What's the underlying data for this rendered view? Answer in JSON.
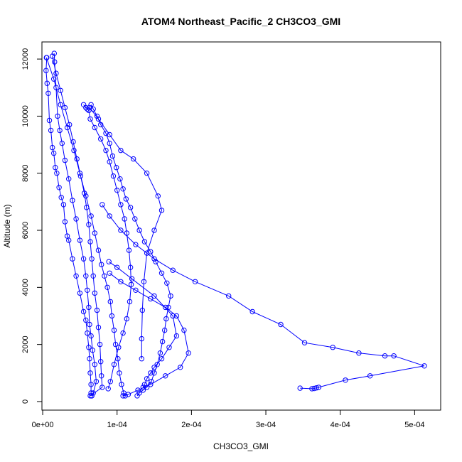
{
  "chart_data": {
    "type": "line",
    "title": "ATOM4 Northeast_Pacific_2 CH3CO3_GMI",
    "xlabel": "CH3CO3_GMI",
    "ylabel": "Altitude (m)",
    "xlim": [
      -1e-06,
      0.000535
    ],
    "ylim": [
      -300,
      12600
    ],
    "x_ticks": [
      0,
      0.0001,
      0.0002,
      0.0003,
      0.0004,
      0.0005
    ],
    "x_tick_labels": [
      "0e+00",
      "1e-04",
      "2e-04",
      "3e-04",
      "4e-04",
      "5e-04"
    ],
    "y_ticks": [
      0,
      2000,
      4000,
      6000,
      8000,
      10000,
      12000
    ],
    "y_tick_labels": [
      "0",
      "2000",
      "4000",
      "6000",
      "8000",
      "10000",
      "12000"
    ],
    "marker": "open-circle",
    "series_color": "#0000ff",
    "grid": false,
    "legend": false,
    "series": [
      {
        "x": [
          5.5e-06,
          4.5e-06,
          6e-06,
          7.5e-06,
          9e-06,
          1.1e-05,
          1.3e-05,
          1.5e-05,
          1.7e-05,
          1.9e-05,
          2.2e-05,
          2.5e-05,
          2.8e-05,
          3e-05,
          3.3e-05,
          3.5e-05,
          4e-05,
          4.5e-05,
          5e-05,
          5.5e-05,
          5.8e-05,
          6e-05,
          6.2e-05,
          6.3e-05,
          6.4e-05,
          6.5e-05,
          6.5e-05,
          6.6e-05
        ],
        "y": [
          12050,
          11600,
          11150,
          10800,
          9850,
          9500,
          8900,
          8700,
          8200,
          8000,
          7500,
          7150,
          6900,
          6300,
          5800,
          5650,
          5000,
          4400,
          3800,
          3150,
          2850,
          2400,
          1900,
          1500,
          1000,
          600,
          300,
          200
        ]
      },
      {
        "x": [
          5e-06,
          1.5e-05,
          2.4e-05,
          3.3e-05,
          4.2e-05,
          5e-05,
          5.8e-05,
          6.5e-05,
          7e-05,
          7.5e-05,
          7.9e-05,
          8.3e-05,
          8.7e-05,
          9.1e-05,
          9.3e-05,
          9.6e-05,
          9.8e-05,
          0.000101,
          0.000103,
          0.000106,
          0.000109,
          0.000111
        ],
        "y": [
          12050,
          11300,
          10400,
          9600,
          8800,
          8000,
          7200,
          6500,
          5900,
          5300,
          4800,
          4400,
          4000,
          3500,
          3000,
          2500,
          2000,
          1500,
          1000,
          600,
          300,
          200
        ]
      },
      {
        "x": [
          1.55e-05,
          1.6e-05,
          1.8e-05,
          2e-05,
          2.3e-05,
          2.6e-05,
          3e-05,
          3.5e-05,
          4e-05,
          4.5e-05,
          5e-05,
          5.5e-05,
          5.8e-05,
          6e-05,
          6.2e-05,
          6.3e-05,
          6.5e-05,
          6.7e-05,
          7e-05,
          7.2e-05,
          6.8e-05,
          6.6e-05
        ],
        "y": [
          12200,
          11900,
          11000,
          10000,
          9500,
          9050,
          8450,
          7800,
          7050,
          6400,
          5650,
          5000,
          4400,
          3900,
          3300,
          2700,
          2300,
          1800,
          1300,
          700,
          300,
          200
        ]
      },
      {
        "x": [
          1.3e-05,
          1.8e-05,
          2.4e-05,
          3e-05,
          3.6e-05,
          4.1e-05,
          4.6e-05,
          5.1e-05,
          5.6e-05,
          5.9e-05,
          6.2e-05,
          6.4e-05,
          6.6e-05,
          6.8e-05,
          7e-05,
          7.3e-05,
          7.5e-05,
          7.7e-05,
          7.8e-05,
          7.9e-05,
          8e-05,
          6.4e-05
        ],
        "y": [
          12100,
          11500,
          10900,
          10300,
          9700,
          9100,
          8500,
          7900,
          7300,
          6800,
          6200,
          5600,
          5000,
          4400,
          3800,
          3200,
          2600,
          2000,
          1400,
          900,
          500,
          200
        ]
      },
      {
        "x": [
          6.5e-05,
          6.8e-05,
          7.3e-05,
          7.8e-05,
          8.5e-05,
          9e-05,
          9.4e-05,
          9.9e-05,
          0.000104,
          0.000108,
          0.000112,
          0.000118,
          0.000124,
          0.00013,
          0.000137,
          0.000145,
          0.000152,
          0.00016,
          0.000167,
          0.000172,
          0.000169,
          0.000166,
          0.000164,
          0.000161,
          0.000158,
          0.000154,
          0.00015,
          0.000146,
          0.00014,
          0.000135,
          0.00013,
          0.000127
        ],
        "y": [
          10400,
          10250,
          10000,
          9700,
          9400,
          9050,
          8600,
          8200,
          7800,
          7450,
          7100,
          6800,
          6400,
          6000,
          5600,
          5250,
          4900,
          4500,
          4150,
          3700,
          3300,
          2900,
          2500,
          2100,
          1700,
          1300,
          1000,
          700,
          500,
          400,
          300,
          200
        ]
      },
      {
        "x": [
          5.5e-05,
          5.8e-05,
          6e-05,
          6.2e-05,
          6.4e-05,
          7e-05,
          7.8e-05,
          8.5e-05,
          9e-05,
          9.5e-05,
          0.0001,
          0.000105,
          0.00011,
          0.000113,
          0.000116,
          0.000118,
          0.000119,
          0.000117,
          0.000113,
          0.000108,
          0.000102,
          9.6e-05,
          9.1e-05,
          8.8e-05
        ],
        "y": [
          10400,
          10300,
          10250,
          10200,
          9900,
          9600,
          9200,
          8800,
          8400,
          7900,
          7400,
          6900,
          6400,
          5900,
          5300,
          4700,
          4100,
          3500,
          2900,
          2400,
          1900,
          1300,
          700,
          450
        ]
      },
      {
        "x": [
          6.3e-05,
          7.5e-05,
          9e-05,
          0.000105,
          0.000122,
          0.00014,
          0.000155,
          0.00016,
          0.00015,
          0.00014,
          0.000136,
          0.000134,
          0.000133,
          0.000133
        ],
        "y": [
          10300,
          9900,
          9350,
          8800,
          8500,
          8000,
          7200,
          6700,
          6000,
          5200,
          4200,
          3200,
          2200,
          1500
        ]
      },
      {
        "x": [
          8e-05,
          9e-05,
          0.000105,
          0.000125,
          0.00015,
          0.000175,
          0.000205,
          0.00025,
          0.000282,
          0.00032,
          0.000352,
          0.00039,
          0.000425,
          0.00046,
          0.000472,
          0.000513,
          0.00044,
          0.000407,
          0.000371,
          0.000368,
          0.000365,
          0.000362,
          0.000346
        ],
        "y": [
          6900,
          6500,
          6000,
          5500,
          5000,
          4600,
          4200,
          3700,
          3150,
          2700,
          2060,
          1900,
          1700,
          1600,
          1600,
          1250,
          900,
          750,
          500,
          480,
          460,
          450,
          470
        ]
      },
      {
        "x": [
          8.9e-05,
          0.0001,
          0.00012,
          0.00015,
          0.000175,
          0.00018,
          0.00017,
          0.00016,
          0.00015,
          0.000145,
          0.00014,
          0.000137,
          0.000135
        ],
        "y": [
          4900,
          4700,
          4300,
          3700,
          3000,
          2300,
          1900,
          1500,
          1200,
          1000,
          800,
          600,
          500
        ]
      },
      {
        "x": [
          9e-05,
          0.000105,
          0.000125,
          0.000145,
          0.000165,
          0.00018,
          0.00019,
          0.000196,
          0.000185,
          0.000165,
          0.000145,
          0.000128,
          0.000115,
          0.000108
        ],
        "y": [
          4500,
          4200,
          3900,
          3600,
          3300,
          3000,
          2500,
          1700,
          1200,
          900,
          600,
          400,
          250,
          200
        ]
      }
    ]
  }
}
